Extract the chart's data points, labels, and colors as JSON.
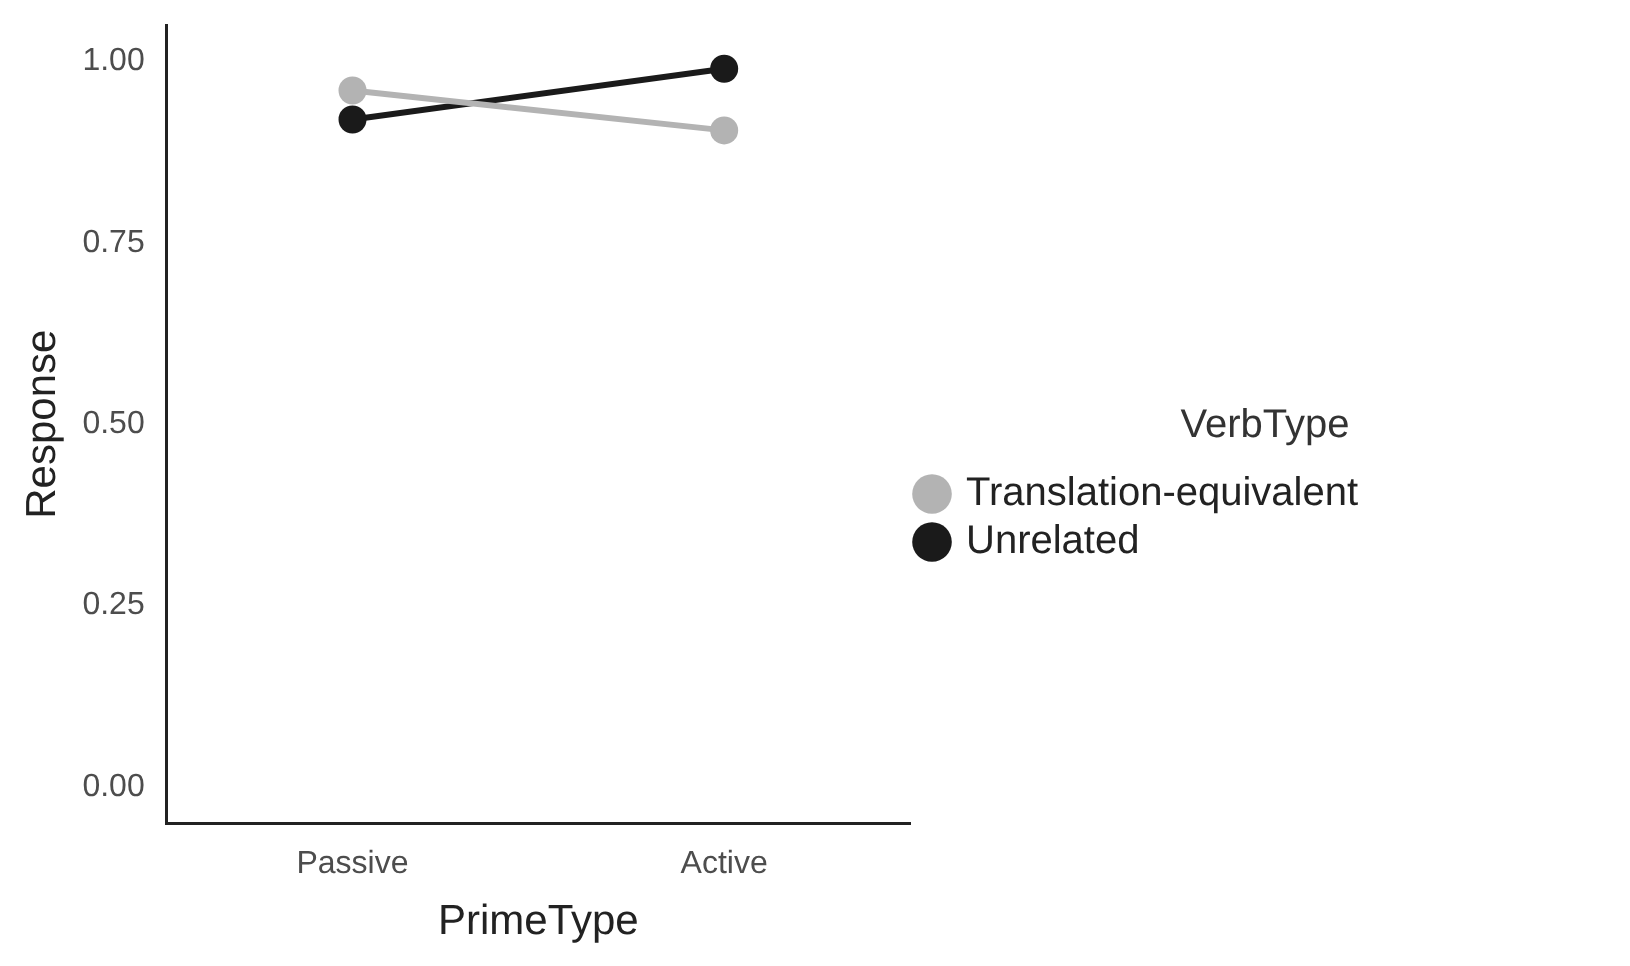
{
  "chart_data": {
    "type": "line",
    "xlabel": "PrimeType",
    "ylabel": "Response",
    "legend_title": "VerbType",
    "categories": [
      "Passive",
      "Active"
    ],
    "series": [
      {
        "name": "Translation-equivalent",
        "color": "#b3b3b3",
        "values": [
          0.96,
          0.905
        ]
      },
      {
        "name": "Unrelated",
        "color": "#1a1a1a",
        "values": [
          0.92,
          0.99
        ]
      }
    ],
    "ylim": [
      -0.05,
      1.05
    ],
    "yticks": [
      {
        "value": 0,
        "label": "0.00"
      },
      {
        "value": 0.25,
        "label": "0.25"
      },
      {
        "value": 0.5,
        "label": "0.50"
      },
      {
        "value": 0.75,
        "label": "0.75"
      },
      {
        "value": 1,
        "label": "1.00"
      }
    ],
    "grid": false,
    "legend": "right",
    "marker": "circle",
    "line_style": "solid"
  }
}
